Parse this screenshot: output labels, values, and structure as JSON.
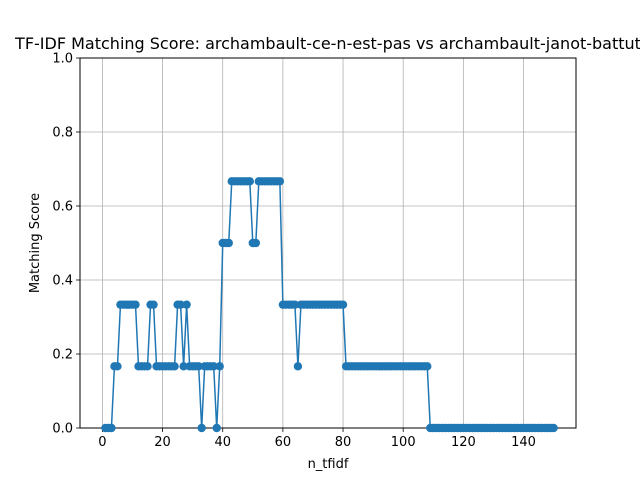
{
  "chart_data": {
    "type": "line",
    "title": "TF-IDF Matching Score: archambault-ce-n-est-pas vs archambault-janot-battut",
    "xlabel": "n_tfidf",
    "ylabel": "Matching Score",
    "xlim": [
      -7.45,
      157.45
    ],
    "ylim": [
      0,
      1
    ],
    "xticks": [
      "0",
      "20",
      "40",
      "60",
      "80",
      "100",
      "120",
      "140"
    ],
    "yticks": [
      "0.0",
      "0.2",
      "0.4",
      "0.6",
      "0.8",
      "1.0"
    ],
    "grid": true,
    "marker": "circle",
    "color": "#1f77b4",
    "series": [
      {
        "x": [
          1,
          2,
          3,
          4,
          5,
          6,
          7,
          8,
          9,
          10,
          11,
          12,
          13,
          14,
          15,
          16,
          17,
          18,
          19,
          20,
          21,
          22,
          23,
          24,
          25,
          26,
          27,
          28,
          29,
          30,
          31,
          32,
          33,
          34,
          35,
          36,
          37,
          38,
          39,
          40,
          41,
          42,
          43,
          44,
          45,
          46,
          47,
          48,
          49,
          50,
          51,
          52,
          53,
          54,
          55,
          56,
          57,
          58,
          59,
          60,
          61,
          62,
          63,
          64,
          65,
          66,
          67,
          68,
          69,
          70,
          71,
          72,
          73,
          74,
          75,
          76,
          77,
          78,
          79,
          80,
          81,
          82,
          83,
          84,
          85,
          86,
          87,
          88,
          89,
          90,
          91,
          92,
          93,
          94,
          95,
          96,
          97,
          98,
          99,
          100,
          101,
          102,
          103,
          104,
          105,
          106,
          107,
          108,
          109,
          110,
          111,
          112,
          113,
          114,
          115,
          116,
          117,
          118,
          119,
          120,
          121,
          122,
          123,
          124,
          125,
          126,
          127,
          128,
          129,
          130,
          131,
          132,
          133,
          134,
          135,
          136,
          137,
          138,
          139,
          140,
          141,
          142,
          143,
          144,
          145,
          146,
          147,
          148,
          149,
          150
        ],
        "values": [
          0,
          0,
          0,
          0.1667,
          0.1667,
          0.3333,
          0.3333,
          0.3333,
          0.3333,
          0.3333,
          0.3333,
          0.1667,
          0.1667,
          0.1667,
          0.1667,
          0.3333,
          0.3333,
          0.1667,
          0.1667,
          0.1667,
          0.1667,
          0.1667,
          0.1667,
          0.1667,
          0.3333,
          0.3333,
          0.1667,
          0.3333,
          0.1667,
          0.1667,
          0.1667,
          0.1667,
          0,
          0.1667,
          0.1667,
          0.1667,
          0.1667,
          0,
          0.1667,
          0.5,
          0.5,
          0.5,
          0.6667,
          0.6667,
          0.6667,
          0.6667,
          0.6667,
          0.6667,
          0.6667,
          0.5,
          0.5,
          0.6667,
          0.6667,
          0.6667,
          0.6667,
          0.6667,
          0.6667,
          0.6667,
          0.6667,
          0.3333,
          0.3333,
          0.3333,
          0.3333,
          0.3333,
          0.1667,
          0.3333,
          0.3333,
          0.3333,
          0.3333,
          0.3333,
          0.3333,
          0.3333,
          0.3333,
          0.3333,
          0.3333,
          0.3333,
          0.3333,
          0.3333,
          0.3333,
          0.3333,
          0.1667,
          0.1667,
          0.1667,
          0.1667,
          0.1667,
          0.1667,
          0.1667,
          0.1667,
          0.1667,
          0.1667,
          0.1667,
          0.1667,
          0.1667,
          0.1667,
          0.1667,
          0.1667,
          0.1667,
          0.1667,
          0.1667,
          0.1667,
          0.1667,
          0.1667,
          0.1667,
          0.1667,
          0.1667,
          0.1667,
          0.1667,
          0.1667,
          0,
          0,
          0,
          0,
          0,
          0,
          0,
          0,
          0,
          0,
          0,
          0,
          0,
          0,
          0,
          0,
          0,
          0,
          0,
          0,
          0,
          0,
          0,
          0,
          0,
          0,
          0,
          0,
          0,
          0,
          0,
          0,
          0,
          0,
          0,
          0,
          0,
          0,
          0,
          0,
          0,
          0
        ]
      }
    ]
  }
}
